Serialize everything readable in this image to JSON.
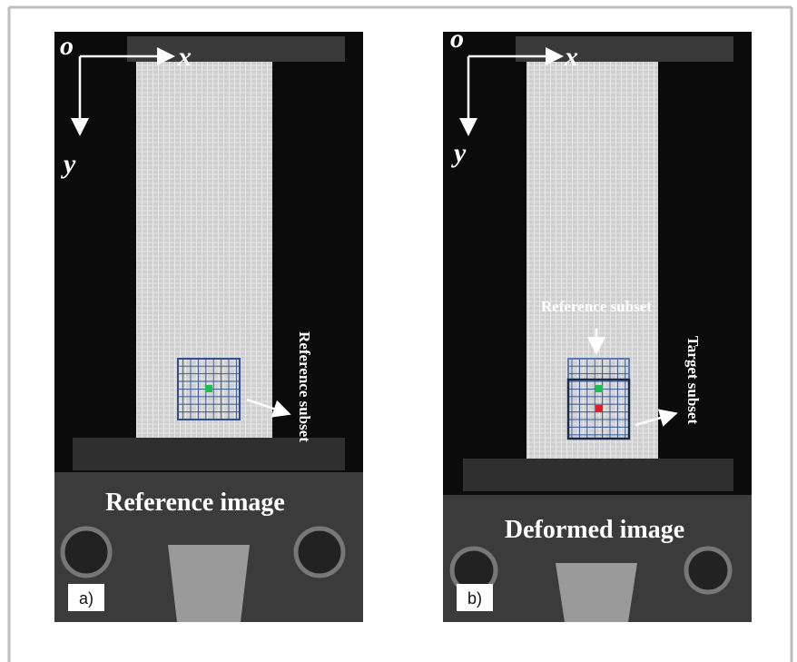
{
  "panels": [
    {
      "label": "a)",
      "caption": "Reference image",
      "origin": "o",
      "x_axis": "x",
      "y_axis": "y",
      "annotations": [
        "Reference subset"
      ]
    },
    {
      "label": "b)",
      "caption": "Deformed image",
      "origin": "o",
      "x_axis": "x",
      "y_axis": "y",
      "annotations": [
        "Reference subset",
        "Target subset"
      ]
    }
  ]
}
